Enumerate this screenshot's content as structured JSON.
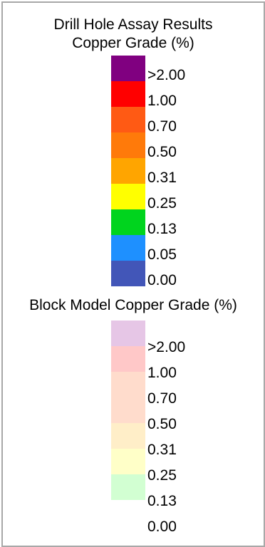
{
  "drill_hole": {
    "title_line1": "Drill Hole Assay Results",
    "title_line2": "Copper Grade (%)",
    "entries": [
      {
        "label": ">2.00",
        "color": "#800080"
      },
      {
        "label": "1.00",
        "color": "#ff0000"
      },
      {
        "label": "0.70",
        "color": "#ff5a14"
      },
      {
        "label": "0.50",
        "color": "#ff7a0a"
      },
      {
        "label": "0.31",
        "color": "#ffa500"
      },
      {
        "label": "0.25",
        "color": "#ffff00"
      },
      {
        "label": "0.13",
        "color": "#00d41e"
      },
      {
        "label": "0.05",
        "color": "#1e90ff"
      },
      {
        "label": "0.00",
        "color": "#4256b8"
      }
    ]
  },
  "block_model": {
    "title": "Block Model Copper Grade (%)",
    "entries": [
      {
        "label": ">2.00",
        "color": "#e6c6e6"
      },
      {
        "label": "1.00",
        "color": "#ffc8c8"
      },
      {
        "label": "0.70",
        "color": "#ffdccc"
      },
      {
        "label": "0.50",
        "color": "#ffdccc"
      },
      {
        "label": "0.31",
        "color": "#ffeec8"
      },
      {
        "label": "0.25",
        "color": "#ffffc8"
      },
      {
        "label": "0.13",
        "color": "#d2ffd2"
      },
      {
        "label": "0.00",
        "color": "#ffffff"
      }
    ]
  }
}
